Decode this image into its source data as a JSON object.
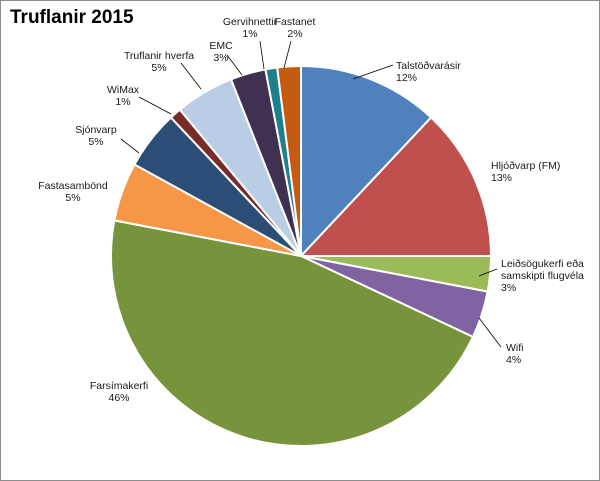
{
  "chart_data": {
    "type": "pie",
    "title": "Truflanir  2015",
    "start_angle_deg": 0,
    "direction": "clockwise",
    "border_color": "#ffffff",
    "slices": [
      {
        "label": "Talstöðvarásir",
        "value": 12,
        "pct_label": "12%",
        "color": "#4f81bd"
      },
      {
        "label": "Hljóðvarp (FM)",
        "value": 13,
        "pct_label": "13%",
        "color": "#c0504d"
      },
      {
        "label": "Leiðsögukerfi eða samskipti flugvéla",
        "lines": [
          "Leiðsögukerfi eða",
          "samskipti flugvéla"
        ],
        "value": 3,
        "pct_label": "3%",
        "color": "#9bbb59"
      },
      {
        "label": "Wifi",
        "value": 4,
        "pct_label": "4%",
        "color": "#8064a2"
      },
      {
        "label": "Farsímakerfi",
        "value": 46,
        "pct_label": "46%",
        "color": "#77933c"
      },
      {
        "label": "Fastasambönd",
        "value": 5,
        "pct_label": "5%",
        "color": "#f79646"
      },
      {
        "label": "Sjónvarp",
        "value": 5,
        "pct_label": "5%",
        "color": "#2c4d75"
      },
      {
        "label": "WiMax",
        "value": 1,
        "pct_label": "1%",
        "color": "#772c2a"
      },
      {
        "label": "Truflanir hverfa",
        "value": 5,
        "pct_label": "5%",
        "color": "#b9cde5"
      },
      {
        "label": "EMC",
        "value": 3,
        "pct_label": "3%",
        "color": "#403152"
      },
      {
        "label": "Gervihnettir",
        "value": 1,
        "pct_label": "1%",
        "color": "#1f7f8c"
      },
      {
        "label": "Fastanet",
        "value": 2,
        "pct_label": "2%",
        "color": "#c55a11"
      }
    ]
  }
}
